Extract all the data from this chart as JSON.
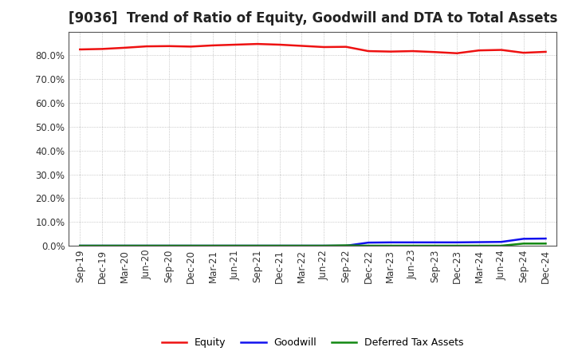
{
  "title": "[9036]  Trend of Ratio of Equity, Goodwill and DTA to Total Assets",
  "x_labels": [
    "Sep-19",
    "Dec-19",
    "Mar-20",
    "Jun-20",
    "Sep-20",
    "Dec-20",
    "Mar-21",
    "Jun-21",
    "Sep-21",
    "Dec-21",
    "Mar-22",
    "Jun-22",
    "Sep-22",
    "Dec-22",
    "Mar-23",
    "Jun-23",
    "Sep-23",
    "Dec-23",
    "Mar-24",
    "Jun-24",
    "Sep-24",
    "Dec-24"
  ],
  "equity": [
    82.5,
    82.7,
    83.2,
    83.8,
    83.9,
    83.7,
    84.2,
    84.5,
    84.8,
    84.5,
    84.0,
    83.5,
    83.6,
    81.8,
    81.6,
    81.8,
    81.4,
    80.9,
    82.1,
    82.3,
    81.1,
    81.5
  ],
  "goodwill": [
    0.0,
    0.0,
    0.0,
    0.0,
    0.0,
    0.0,
    0.0,
    0.0,
    0.0,
    0.0,
    0.0,
    0.0,
    0.0,
    1.3,
    1.4,
    1.4,
    1.4,
    1.4,
    1.5,
    1.6,
    2.9,
    3.0
  ],
  "dta": [
    0.0,
    0.0,
    0.0,
    0.0,
    0.0,
    0.0,
    0.0,
    0.0,
    0.0,
    0.0,
    0.0,
    0.0,
    0.15,
    0.0,
    0.0,
    0.0,
    0.0,
    0.0,
    0.0,
    0.0,
    0.9,
    0.9
  ],
  "equity_color": "#ee1111",
  "goodwill_color": "#1111ee",
  "dta_color": "#118811",
  "ylim": [
    0.0,
    90.0
  ],
  "yticks": [
    0.0,
    10.0,
    20.0,
    30.0,
    40.0,
    50.0,
    60.0,
    70.0,
    80.0
  ],
  "legend_labels": [
    "Equity",
    "Goodwill",
    "Deferred Tax Assets"
  ],
  "background_color": "#ffffff",
  "grid_color": "#999999",
  "border_color": "#555555",
  "title_fontsize": 12,
  "tick_fontsize": 8.5,
  "line_width": 1.8
}
